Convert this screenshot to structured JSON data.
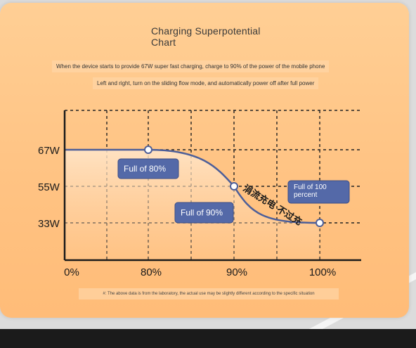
{
  "colors": {
    "accent_blue": "#5469a8",
    "curve": "#4d5f99",
    "card": "#ffc383"
  },
  "page": {
    "title": "Charging Superpotential\nChart",
    "desc1": "When the device starts to provide 67W super fast charging, charge to 90% of the power of the mobile phone",
    "desc2": "Left and right, turn on the sliding flow mode, and automatically power off after full power",
    "footnote": "#: The above data is from the laboratory, the actual use may be slightly different according to the specific situation"
  },
  "chart_data": {
    "type": "line",
    "x": [
      0,
      80,
      90,
      100
    ],
    "y_ticks": [
      67,
      55,
      33
    ],
    "y_tick_labels": [
      "67W",
      "55W",
      "33W"
    ],
    "x_tick_labels": [
      "0%",
      "80%",
      "90%",
      "100%"
    ],
    "series": [
      {
        "x": [
          0,
          80,
          90,
          100
        ],
        "y": [
          67,
          67,
          55,
          33
        ]
      }
    ],
    "annotations": [
      {
        "text": "Full of 80%",
        "at": [
          80,
          67
        ]
      },
      {
        "text": "Full of 90%",
        "at": [
          90,
          55
        ]
      },
      {
        "text": "Full of 100\npercent",
        "at": [
          100,
          33
        ]
      },
      {
        "text": "涓流充电 不过充",
        "at": [
          92,
          45
        ]
      }
    ],
    "grid": true
  }
}
